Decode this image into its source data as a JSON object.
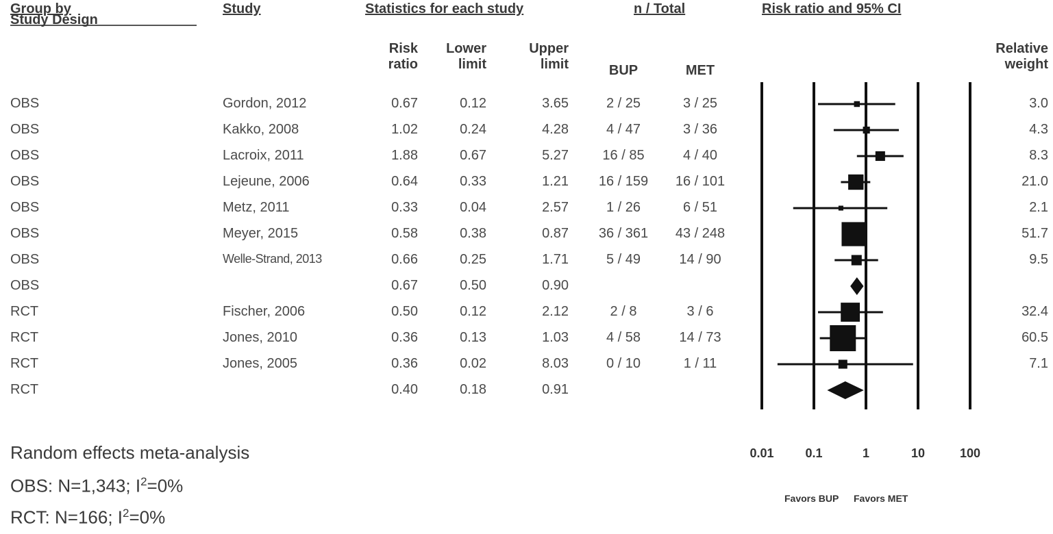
{
  "headers": {
    "group": "Group by",
    "group2": "Study Design",
    "study": "Study",
    "stats": "Statistics for each study",
    "ntotal": "n / Total",
    "plot": "Risk ratio and 95% CI",
    "rr": "Risk ratio",
    "lower": "Lower limit",
    "upper": "Upper limit",
    "bup": "BUP",
    "met": "MET",
    "weight": "Relative weight"
  },
  "rows": [
    {
      "group": "OBS",
      "study": "Gordon, 2012",
      "rr": "0.67",
      "lower": "0.12",
      "upper": "3.65",
      "bup": "2 / 25",
      "met": "3 / 25",
      "weight": "3.0"
    },
    {
      "group": "OBS",
      "study": "Kakko, 2008",
      "rr": "1.02",
      "lower": "0.24",
      "upper": "4.28",
      "bup": "4 / 47",
      "met": "3 / 36",
      "weight": "4.3"
    },
    {
      "group": "OBS",
      "study": "Lacroix, 2011",
      "rr": "1.88",
      "lower": "0.67",
      "upper": "5.27",
      "bup": "16 / 85",
      "met": "4 / 40",
      "weight": "8.3"
    },
    {
      "group": "OBS",
      "study": "Lejeune, 2006",
      "rr": "0.64",
      "lower": "0.33",
      "upper": "1.21",
      "bup": "16 / 159",
      "met": "16 / 101",
      "weight": "21.0"
    },
    {
      "group": "OBS",
      "study": "Metz, 2011",
      "rr": "0.33",
      "lower": "0.04",
      "upper": "2.57",
      "bup": "1 / 26",
      "met": "6 / 51",
      "weight": "2.1"
    },
    {
      "group": "OBS",
      "study": "Meyer, 2015",
      "rr": "0.58",
      "lower": "0.38",
      "upper": "0.87",
      "bup": "36 / 361",
      "met": "43 / 248",
      "weight": "51.7"
    },
    {
      "group": "OBS",
      "study": "Welle-Strand, 2013",
      "rr": "0.66",
      "lower": "0.25",
      "upper": "1.71",
      "bup": "5 / 49",
      "met": "14 / 90",
      "weight": "9.5"
    },
    {
      "group": "OBS",
      "study": "",
      "rr": "0.67",
      "lower": "0.50",
      "upper": "0.90",
      "bup": "",
      "met": "",
      "weight": ""
    },
    {
      "group": "RCT",
      "study": "Fischer, 2006",
      "rr": "0.50",
      "lower": "0.12",
      "upper": "2.12",
      "bup": "2 / 8",
      "met": "3 / 6",
      "weight": "32.4"
    },
    {
      "group": "RCT",
      "study": "Jones, 2010",
      "rr": "0.36",
      "lower": "0.13",
      "upper": "1.03",
      "bup": "4 / 58",
      "met": "14 / 73",
      "weight": "60.5"
    },
    {
      "group": "RCT",
      "study": "Jones, 2005",
      "rr": "0.36",
      "lower": "0.02",
      "upper": "8.03",
      "bup": "0 / 10",
      "met": "1 / 11",
      "weight": "7.1"
    },
    {
      "group": "RCT",
      "study": "",
      "rr": "0.40",
      "lower": "0.18",
      "upper": "0.91",
      "bup": "",
      "met": "",
      "weight": ""
    }
  ],
  "footer": {
    "title": "Random effects meta-analysis",
    "obs_prefix": "OBS: N=1,343; I",
    "obs_sup": "2",
    "obs_suffix": "=0%",
    "rct_prefix": "RCT: N=166; I",
    "rct_sup": "2",
    "rct_suffix": "=0%"
  },
  "axis": {
    "ticks": [
      "0.01",
      "0.1",
      "1",
      "10",
      "100"
    ],
    "favors_left": "Favors BUP",
    "favors_right": "Favors MET"
  },
  "chart_data": {
    "type": "forest",
    "xscale": "log",
    "xlim": [
      0.01,
      100
    ],
    "xticks": [
      0.01,
      0.1,
      1,
      10,
      100
    ],
    "points": [
      {
        "label": "Gordon, 2012",
        "group": "OBS",
        "rr": 0.67,
        "lower": 0.12,
        "upper": 3.65,
        "weight": 3.0
      },
      {
        "label": "Kakko, 2008",
        "group": "OBS",
        "rr": 1.02,
        "lower": 0.24,
        "upper": 4.28,
        "weight": 4.3
      },
      {
        "label": "Lacroix, 2011",
        "group": "OBS",
        "rr": 1.88,
        "lower": 0.67,
        "upper": 5.27,
        "weight": 8.3
      },
      {
        "label": "Lejeune, 2006",
        "group": "OBS",
        "rr": 0.64,
        "lower": 0.33,
        "upper": 1.21,
        "weight": 21.0
      },
      {
        "label": "Metz, 2011",
        "group": "OBS",
        "rr": 0.33,
        "lower": 0.04,
        "upper": 2.57,
        "weight": 2.1
      },
      {
        "label": "Meyer, 2015",
        "group": "OBS",
        "rr": 0.58,
        "lower": 0.38,
        "upper": 0.87,
        "weight": 51.7
      },
      {
        "label": "Welle-Strand, 2013",
        "group": "OBS",
        "rr": 0.66,
        "lower": 0.25,
        "upper": 1.71,
        "weight": 9.5
      },
      {
        "label": "OBS",
        "group": "OBS",
        "rr": 0.67,
        "lower": 0.5,
        "upper": 0.9,
        "summary": true
      },
      {
        "label": "Fischer, 2006",
        "group": "RCT",
        "rr": 0.5,
        "lower": 0.12,
        "upper": 2.12,
        "weight": 32.4
      },
      {
        "label": "Jones, 2010",
        "group": "RCT",
        "rr": 0.36,
        "lower": 0.13,
        "upper": 1.03,
        "weight": 60.5
      },
      {
        "label": "Jones, 2005",
        "group": "RCT",
        "rr": 0.36,
        "lower": 0.02,
        "upper": 8.03,
        "weight": 7.1
      },
      {
        "label": "RCT",
        "group": "RCT",
        "rr": 0.4,
        "lower": 0.18,
        "upper": 0.91,
        "summary": true
      }
    ]
  }
}
